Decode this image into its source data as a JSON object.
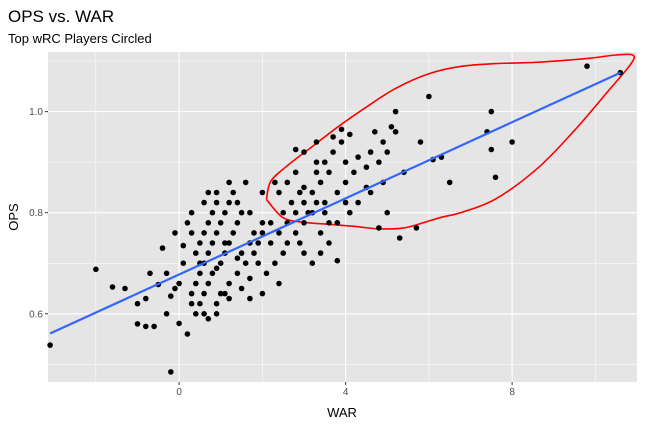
{
  "chart_data": {
    "type": "scatter",
    "title": "OPS vs. WAR",
    "subtitle": "Top wRC Players Circled",
    "xlabel": "WAR",
    "ylabel": "OPS",
    "xlim": [
      -3.15,
      11.0
    ],
    "ylim": [
      0.465,
      1.118
    ],
    "x_ticks": [
      0,
      4,
      8
    ],
    "x_tick_labels": [
      "0",
      "4",
      "8"
    ],
    "y_ticks": [
      0.6,
      0.8,
      1.0
    ],
    "y_tick_labels": [
      "0.6",
      "0.8",
      "1.0"
    ],
    "grid": true,
    "legend": "none",
    "colors": {
      "panel_background": "#e5e5e5",
      "grid_major": "#ffffff",
      "points": "#000000",
      "fit_line": "#3366ff",
      "highlight_circle": "#ff0000",
      "tick_text": "#4d4d4d"
    },
    "fit_line": {
      "x": [
        -3.1,
        10.6
      ],
      "y": [
        0.561,
        1.077
      ]
    },
    "highlight_region": {
      "x": [
        2.1,
        2.2,
        2.6,
        3.2,
        3.8,
        4.5,
        5.2,
        6.0,
        6.8,
        7.6,
        8.4,
        9.2,
        9.9,
        10.5,
        10.9,
        10.85,
        10.3,
        9.5,
        8.6,
        7.6,
        6.8,
        6.3,
        5.9,
        5.4,
        4.8,
        4.2,
        3.6,
        3.0,
        2.5,
        2.1
      ],
      "y": [
        0.826,
        0.862,
        0.893,
        0.931,
        0.969,
        1.009,
        1.046,
        1.075,
        1.09,
        1.095,
        1.097,
        1.101,
        1.106,
        1.112,
        1.112,
        1.094,
        1.04,
        0.963,
        0.887,
        0.827,
        0.801,
        0.791,
        0.781,
        0.77,
        0.768,
        0.773,
        0.777,
        0.781,
        0.79,
        0.826
      ]
    },
    "points": [
      [
        -3.1,
        0.538
      ],
      [
        -2.0,
        0.688
      ],
      [
        -1.6,
        0.653
      ],
      [
        -1.3,
        0.65
      ],
      [
        -1.0,
        0.58
      ],
      [
        -0.8,
        0.575
      ],
      [
        -0.6,
        0.575
      ],
      [
        -0.5,
        0.658
      ],
      [
        -0.4,
        0.73
      ],
      [
        -0.2,
        0.635
      ],
      [
        -0.2,
        0.485
      ],
      [
        0.0,
        0.581
      ],
      [
        0.2,
        0.56
      ],
      [
        -0.1,
        0.65
      ],
      [
        0.1,
        0.7
      ],
      [
        -0.8,
        0.63
      ],
      [
        -1.0,
        0.62
      ],
      [
        -0.7,
        0.68
      ],
      [
        -0.3,
        0.6
      ],
      [
        0.0,
        0.66
      ],
      [
        -0.3,
        0.68
      ],
      [
        0.3,
        0.62
      ],
      [
        0.1,
        0.735
      ],
      [
        0.3,
        0.64
      ],
      [
        0.4,
        0.66
      ],
      [
        0.5,
        0.68
      ],
      [
        0.6,
        0.7
      ],
      [
        0.7,
        0.72
      ],
      [
        0.8,
        0.74
      ],
      [
        0.9,
        0.76
      ],
      [
        1.0,
        0.78
      ],
      [
        1.1,
        0.8
      ],
      [
        1.2,
        0.82
      ],
      [
        1.3,
        0.84
      ],
      [
        0.4,
        0.72
      ],
      [
        0.5,
        0.74
      ],
      [
        0.6,
        0.76
      ],
      [
        0.7,
        0.78
      ],
      [
        0.8,
        0.8
      ],
      [
        0.9,
        0.82
      ],
      [
        0.5,
        0.62
      ],
      [
        0.6,
        0.64
      ],
      [
        0.7,
        0.66
      ],
      [
        0.8,
        0.68
      ],
      [
        1.0,
        0.7
      ],
      [
        1.1,
        0.72
      ],
      [
        1.2,
        0.74
      ],
      [
        1.3,
        0.76
      ],
      [
        1.4,
        0.78
      ],
      [
        1.5,
        0.8
      ],
      [
        0.4,
        0.6
      ],
      [
        0.6,
        0.6
      ],
      [
        0.9,
        0.62
      ],
      [
        1.0,
        0.64
      ],
      [
        1.2,
        0.66
      ],
      [
        1.4,
        0.68
      ],
      [
        1.6,
        0.7
      ],
      [
        1.8,
        0.72
      ],
      [
        1.9,
        0.74
      ],
      [
        2.0,
        0.76
      ],
      [
        0.6,
        0.82
      ],
      [
        0.9,
        0.84
      ],
      [
        1.2,
        0.86
      ],
      [
        0.3,
        0.8
      ],
      [
        0.7,
        0.84
      ],
      [
        1.4,
        0.82
      ],
      [
        1.7,
        0.8
      ],
      [
        1.6,
        0.86
      ],
      [
        1.1,
        0.64
      ],
      [
        1.2,
        0.63
      ],
      [
        1.5,
        0.65
      ],
      [
        1.7,
        0.67
      ],
      [
        1.5,
        0.72
      ],
      [
        1.7,
        0.74
      ],
      [
        1.8,
        0.76
      ],
      [
        2.0,
        0.78
      ],
      [
        2.1,
        0.68
      ],
      [
        2.3,
        0.7
      ],
      [
        2.5,
        0.72
      ],
      [
        2.6,
        0.74
      ],
      [
        2.8,
        0.76
      ],
      [
        3.0,
        0.78
      ],
      [
        3.1,
        0.8
      ],
      [
        3.3,
        0.82
      ],
      [
        2.2,
        0.74
      ],
      [
        2.4,
        0.76
      ],
      [
        2.6,
        0.78
      ],
      [
        2.8,
        0.8
      ],
      [
        3.0,
        0.82
      ],
      [
        3.2,
        0.84
      ],
      [
        3.4,
        0.86
      ],
      [
        3.6,
        0.88
      ],
      [
        2.4,
        0.84
      ],
      [
        2.6,
        0.86
      ],
      [
        2.8,
        0.88
      ],
      [
        3.0,
        0.85
      ],
      [
        3.3,
        0.88
      ],
      [
        3.5,
        0.9
      ],
      [
        3.7,
        0.92
      ],
      [
        3.9,
        0.94
      ],
      [
        2.5,
        0.8
      ],
      [
        2.7,
        0.82
      ],
      [
        2.9,
        0.84
      ],
      [
        3.2,
        0.8
      ],
      [
        3.5,
        0.82
      ],
      [
        3.8,
        0.84
      ],
      [
        4.0,
        0.86
      ],
      [
        4.2,
        0.88
      ],
      [
        3.0,
        0.92
      ],
      [
        3.3,
        0.9
      ],
      [
        3.7,
        0.95
      ],
      [
        4.3,
        0.91
      ],
      [
        4.5,
        0.89
      ],
      [
        4.6,
        0.92
      ],
      [
        4.8,
        0.9
      ],
      [
        4.9,
        0.94
      ],
      [
        5.0,
        0.92
      ],
      [
        5.2,
        0.96
      ],
      [
        5.4,
        0.88
      ],
      [
        3.6,
        0.78
      ],
      [
        4.1,
        0.8
      ],
      [
        4.3,
        0.82
      ],
      [
        4.5,
        0.85
      ],
      [
        4.0,
        0.9
      ],
      [
        3.4,
        0.76
      ],
      [
        3.6,
        0.74
      ],
      [
        3.0,
        0.72
      ],
      [
        3.2,
        0.7
      ],
      [
        2.4,
        0.66
      ],
      [
        2.0,
        0.64
      ],
      [
        1.7,
        0.63
      ],
      [
        0.9,
        0.6
      ],
      [
        0.7,
        0.59
      ],
      [
        3.8,
        0.705
      ],
      [
        3.5,
        0.8
      ],
      [
        3.8,
        0.78
      ],
      [
        4.0,
        0.82
      ],
      [
        2.9,
        0.74
      ],
      [
        3.4,
        0.72
      ],
      [
        2.2,
        0.78
      ],
      [
        2.0,
        0.84
      ],
      [
        2.3,
        0.86
      ],
      [
        2.8,
        0.925
      ],
      [
        3.3,
        0.94
      ],
      [
        3.9,
        0.965
      ],
      [
        4.1,
        0.955
      ],
      [
        4.7,
        0.96
      ],
      [
        5.1,
        0.97
      ],
      [
        5.2,
        1.0
      ],
      [
        5.8,
        0.94
      ],
      [
        6.0,
        1.03
      ],
      [
        6.3,
        0.91
      ],
      [
        6.5,
        0.86
      ],
      [
        5.0,
        0.8
      ],
      [
        5.7,
        0.77
      ],
      [
        7.5,
        1.0
      ],
      [
        7.4,
        0.96
      ],
      [
        7.5,
        0.925
      ],
      [
        7.6,
        0.87
      ],
      [
        8.0,
        0.94
      ],
      [
        9.8,
        1.09
      ],
      [
        10.6,
        1.077
      ],
      [
        4.8,
        0.77
      ],
      [
        5.3,
        0.75
      ],
      [
        4.6,
        0.84
      ],
      [
        6.1,
        0.905
      ],
      [
        4.9,
        0.86
      ],
      [
        -0.1,
        0.76
      ],
      [
        0.2,
        0.78
      ],
      [
        0.3,
        0.76
      ],
      [
        0.5,
        0.7
      ],
      [
        0.9,
        0.69
      ],
      [
        1.1,
        0.74
      ],
      [
        1.4,
        0.71
      ],
      [
        1.9,
        0.7
      ]
    ]
  }
}
